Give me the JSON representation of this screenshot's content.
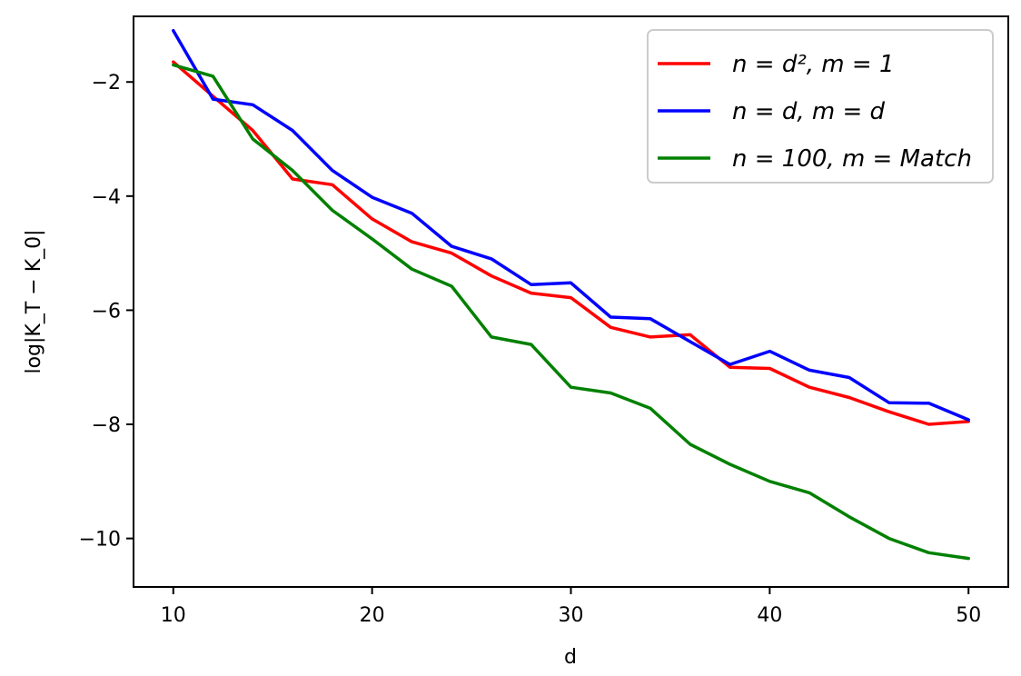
{
  "chart_data": {
    "type": "line",
    "title": "",
    "xlabel": "d",
    "ylabel": "log|K_T − K_0|",
    "xlim": [
      8,
      52
    ],
    "ylim": [
      -10.85,
      -0.85
    ],
    "xticks": [
      10,
      20,
      30,
      40,
      50
    ],
    "yticks": [
      -2,
      -4,
      -6,
      -8,
      -10
    ],
    "xtick_labels": [
      "10",
      "20",
      "30",
      "40",
      "50"
    ],
    "ytick_labels": [
      "−2",
      "−4",
      "−6",
      "−8",
      "−10"
    ],
    "grid": false,
    "legend_position": "top-right",
    "x": [
      10,
      12,
      14,
      16,
      18,
      20,
      22,
      24,
      26,
      28,
      30,
      32,
      34,
      36,
      38,
      40,
      42,
      44,
      46,
      48,
      50
    ],
    "series": [
      {
        "name_parts": [
          "n",
          " = ",
          "d",
          "²",
          ", ",
          "m",
          " = 1"
        ],
        "color": "#ff0000",
        "values": [
          -1.65,
          -2.25,
          -2.85,
          -3.7,
          -3.8,
          -4.4,
          -4.8,
          -5.0,
          -5.4,
          -5.7,
          -5.78,
          -6.3,
          -6.47,
          -6.43,
          -7.0,
          -7.02,
          -7.35,
          -7.53,
          -7.78,
          -8.0,
          -7.95
        ]
      },
      {
        "name_parts": [
          "n",
          " = ",
          "d",
          ", ",
          "m",
          " = ",
          "d"
        ],
        "color": "#0000ff",
        "values": [
          -1.1,
          -2.3,
          -2.4,
          -2.85,
          -3.55,
          -4.02,
          -4.3,
          -4.88,
          -5.1,
          -5.55,
          -5.52,
          -6.12,
          -6.15,
          -6.55,
          -6.95,
          -6.72,
          -7.05,
          -7.18,
          -7.62,
          -7.63,
          -7.92
        ]
      },
      {
        "name_parts": [
          "n",
          " = 100, ",
          "m",
          " = ",
          "Match"
        ],
        "color": "#008000",
        "values": [
          -1.7,
          -1.9,
          -3.0,
          -3.55,
          -4.25,
          -4.75,
          -5.28,
          -5.58,
          -6.47,
          -6.6,
          -7.35,
          -7.45,
          -7.72,
          -8.35,
          -8.7,
          -9.0,
          -9.2,
          -9.62,
          -10.0,
          -10.25,
          -10.35
        ]
      }
    ]
  }
}
